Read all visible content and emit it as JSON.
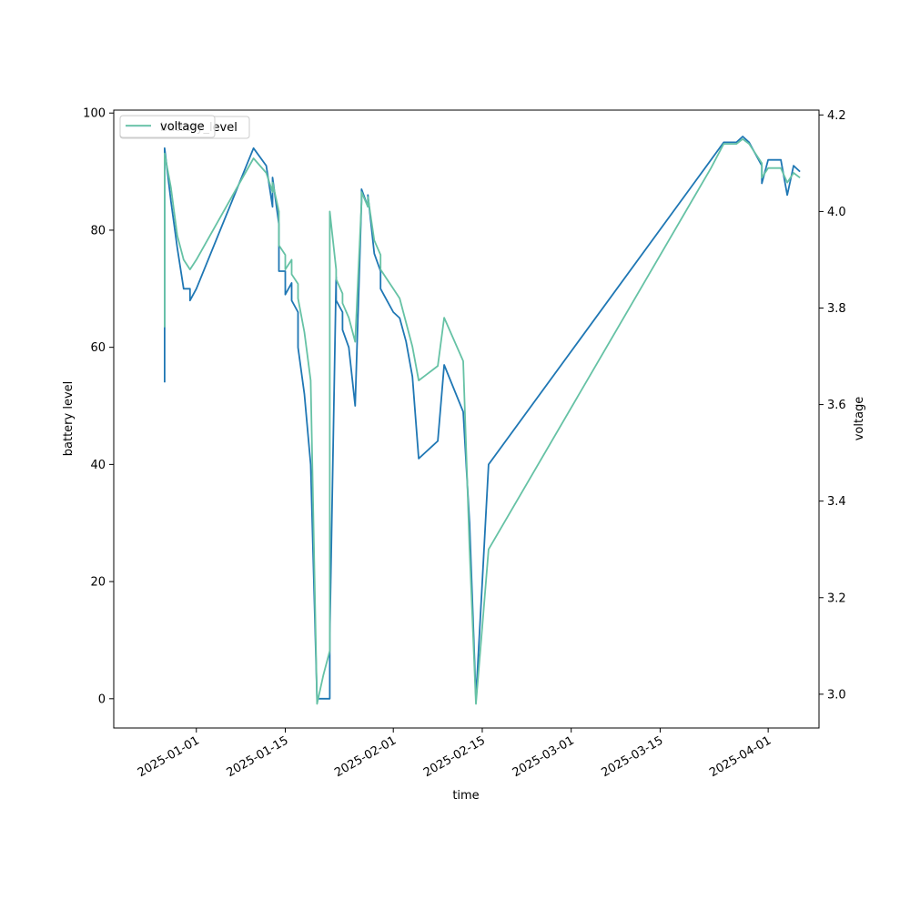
{
  "chart_data": {
    "type": "line",
    "xlabel": "time",
    "ylabel_left": "battery level",
    "ylabel_right": "voltage",
    "xlim": [
      "2024-12-19",
      "2025-04-09"
    ],
    "ylim_left": [
      -5,
      100.5
    ],
    "ylim_right": [
      2.93,
      4.21
    ],
    "x_ticks": [
      "2025-01-01",
      "2025-01-15",
      "2025-02-01",
      "2025-02-15",
      "2025-03-01",
      "2025-03-15",
      "2025-04-01"
    ],
    "y_ticks_left": [
      "0",
      "20",
      "40",
      "60",
      "80",
      "100"
    ],
    "y_ticks_right": [
      "3.0",
      "3.2",
      "3.4",
      "3.6",
      "3.8",
      "4.0",
      "4.2"
    ],
    "grid": false,
    "legend_placement": "top-left",
    "legend_texts": [
      "battery_level",
      "voltage"
    ],
    "series": [
      {
        "name": "battery_level",
        "axis": "left",
        "color": "#1f77b4",
        "x": [
          "2024-12-27",
          "2024-12-27",
          "2024-12-28",
          "2024-12-29",
          "2024-12-30",
          "2024-12-31",
          "2024-12-31",
          "2025-01-01",
          "2025-01-10",
          "2025-01-12",
          "2025-01-13",
          "2025-01-13",
          "2025-01-14",
          "2025-01-14",
          "2025-01-15",
          "2025-01-15",
          "2025-01-16",
          "2025-01-16",
          "2025-01-17",
          "2025-01-17",
          "2025-01-18",
          "2025-01-19",
          "2025-01-20",
          "2025-01-21",
          "2025-01-22",
          "2025-01-22",
          "2025-01-23",
          "2025-01-23",
          "2025-01-24",
          "2025-01-24",
          "2025-01-25",
          "2025-01-26",
          "2025-01-27",
          "2025-01-27",
          "2025-01-28",
          "2025-01-28",
          "2025-01-29",
          "2025-01-30",
          "2025-01-30",
          "2025-01-31",
          "2025-02-01",
          "2025-02-02",
          "2025-02-03",
          "2025-02-04",
          "2025-02-05",
          "2025-02-06",
          "2025-02-07",
          "2025-02-08",
          "2025-02-09",
          "2025-02-12",
          "2025-02-13",
          "2025-02-14",
          "2025-02-15",
          "2025-02-16",
          "2025-03-23",
          "2025-03-25",
          "2025-03-27",
          "2025-03-28",
          "2025-03-29",
          "2025-03-30",
          "2025-03-31",
          "2025-03-31",
          "2025-04-01",
          "2025-04-03",
          "2025-04-04",
          "2025-04-05",
          "2025-04-06"
        ],
        "y": [
          54,
          94,
          85,
          77,
          70,
          70,
          68,
          70,
          94,
          91,
          84,
          89,
          81,
          73,
          73,
          69,
          71,
          68,
          66,
          60,
          52,
          40,
          0,
          0,
          0,
          11,
          72,
          68,
          66,
          63,
          60,
          50,
          85,
          87,
          84,
          86,
          76,
          73,
          70,
          68,
          66,
          65,
          61,
          55,
          41,
          42,
          43,
          44,
          57,
          49,
          30,
          0,
          20,
          40,
          92,
          95,
          95,
          96,
          95,
          93,
          91,
          88,
          92,
          92,
          86,
          91,
          90
        ]
      },
      {
        "name": "voltage",
        "axis": "right",
        "color": "#66c2a5",
        "x": [
          "2024-12-27",
          "2024-12-27",
          "2024-12-28",
          "2024-12-29",
          "2024-12-30",
          "2024-12-31",
          "2024-12-31",
          "2025-01-01",
          "2025-01-10",
          "2025-01-12",
          "2025-01-13",
          "2025-01-13",
          "2025-01-14",
          "2025-01-14",
          "2025-01-15",
          "2025-01-15",
          "2025-01-16",
          "2025-01-16",
          "2025-01-17",
          "2025-01-17",
          "2025-01-18",
          "2025-01-19",
          "2025-01-20",
          "2025-01-21",
          "2025-01-22",
          "2025-01-22",
          "2025-01-23",
          "2025-01-23",
          "2025-01-24",
          "2025-01-24",
          "2025-01-25",
          "2025-01-26",
          "2025-01-27",
          "2025-01-27",
          "2025-01-28",
          "2025-01-28",
          "2025-01-29",
          "2025-01-30",
          "2025-01-30",
          "2025-01-31",
          "2025-02-01",
          "2025-02-02",
          "2025-02-03",
          "2025-02-04",
          "2025-02-05",
          "2025-02-06",
          "2025-02-07",
          "2025-02-08",
          "2025-02-09",
          "2025-02-12",
          "2025-02-13",
          "2025-02-14",
          "2025-02-15",
          "2025-02-16",
          "2025-03-23",
          "2025-03-25",
          "2025-03-27",
          "2025-03-28",
          "2025-03-29",
          "2025-03-30",
          "2025-03-31",
          "2025-03-31",
          "2025-04-01",
          "2025-04-03",
          "2025-04-04",
          "2025-04-05",
          "2025-04-06"
        ],
        "y": [
          3.76,
          4.12,
          4.05,
          3.95,
          3.9,
          3.88,
          3.88,
          3.9,
          4.11,
          4.08,
          4.04,
          4.06,
          4.0,
          3.93,
          3.91,
          3.88,
          3.9,
          3.87,
          3.85,
          3.82,
          3.75,
          3.65,
          2.98,
          3.04,
          3.09,
          4.0,
          3.88,
          3.86,
          3.83,
          3.81,
          3.78,
          3.73,
          4.02,
          4.04,
          4.01,
          4.03,
          3.94,
          3.91,
          3.88,
          3.86,
          3.84,
          3.82,
          3.77,
          3.72,
          3.65,
          3.66,
          3.67,
          3.68,
          3.78,
          3.69,
          3.3,
          2.98,
          3.14,
          3.3,
          4.09,
          4.14,
          4.14,
          4.15,
          4.14,
          4.12,
          4.1,
          4.07,
          4.09,
          4.09,
          4.06,
          4.08,
          4.07
        ]
      }
    ]
  }
}
